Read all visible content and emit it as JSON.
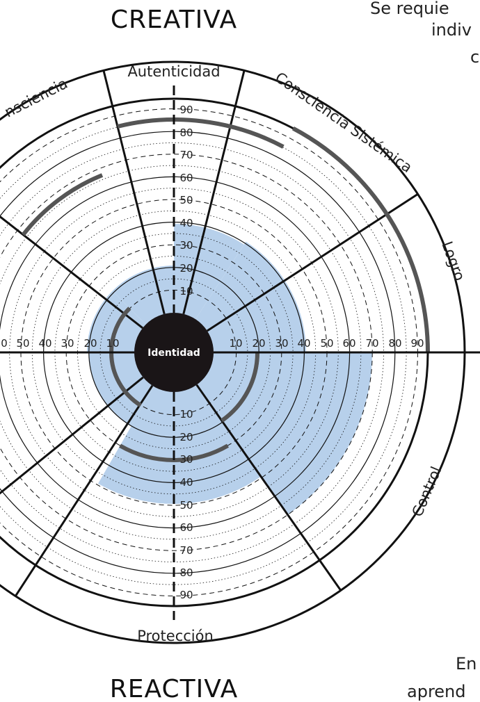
{
  "titles": {
    "top": "CREATIVA",
    "bottom": "REACTIVA"
  },
  "side_text": {
    "top_lines": [
      "Se requie",
      "indiv",
      "c"
    ],
    "bottom_lines": [
      "En",
      "aprend"
    ]
  },
  "center": {
    "label": "Identidad"
  },
  "segments": {
    "autenticidad": "Autenticidad",
    "consciencia_sistemica": "Consciencia Sistémica",
    "logro": "Logro",
    "control": "Control",
    "proteccion": "Protección",
    "consciencia_left": "nsciencia"
  },
  "ticks": {
    "up": [
      "10",
      "20",
      "30",
      "40",
      "50",
      "60",
      "70",
      "80",
      "90"
    ],
    "down": [
      "10",
      "20",
      "30",
      "40",
      "50",
      "60",
      "70",
      "80",
      "90"
    ],
    "right": [
      "10",
      "20",
      "30",
      "40",
      "50",
      "60",
      "70",
      "80",
      "90"
    ],
    "left": [
      "10",
      "20",
      "30",
      "40",
      "50",
      "0"
    ]
  },
  "colors": {
    "fill": "#b7d0eb",
    "ink": "#111111",
    "arc": "#555555"
  }
}
